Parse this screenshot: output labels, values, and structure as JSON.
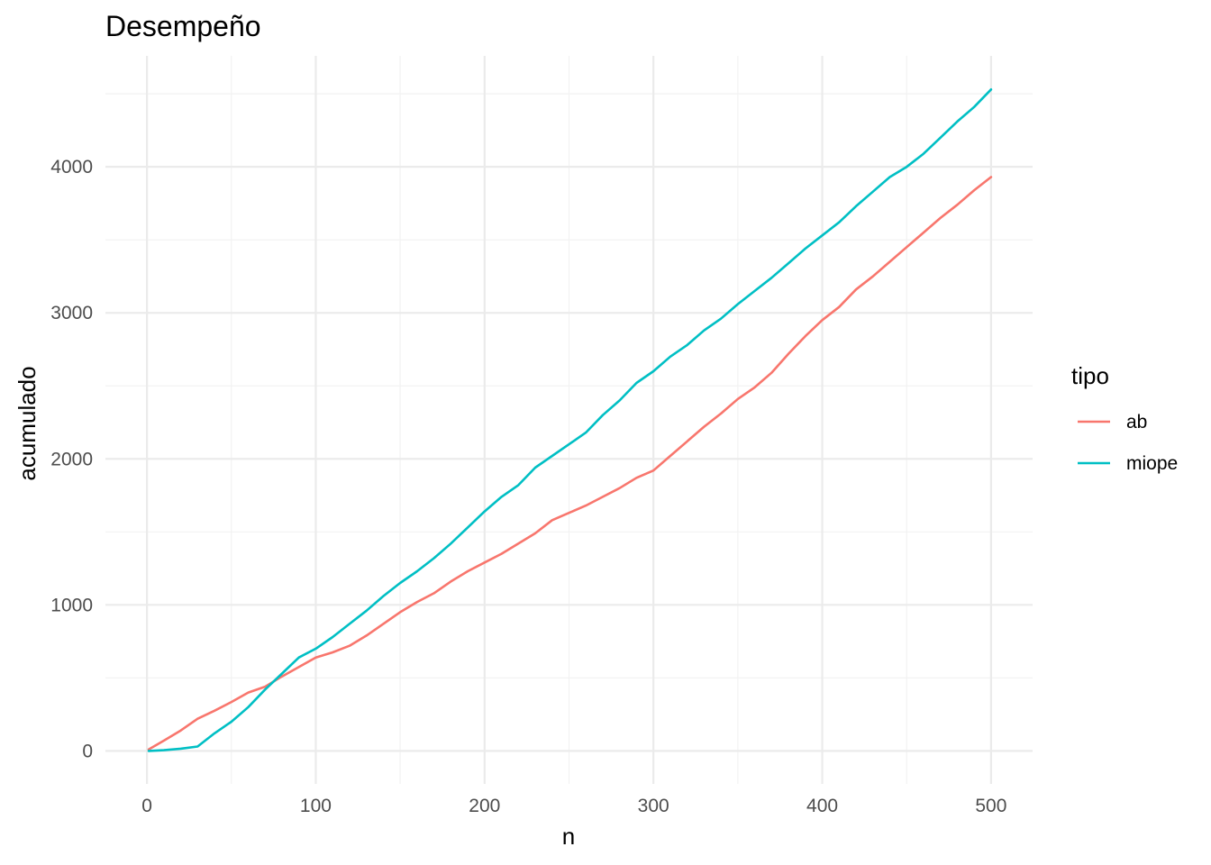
{
  "chart_data": {
    "type": "line",
    "title": "Desempeño",
    "xlabel": "n",
    "ylabel": "acumulado",
    "xlim": [
      -24.6,
      524.6
    ],
    "ylim": [
      -226,
      4760
    ],
    "x_ticks": [
      0,
      100,
      200,
      300,
      400,
      500
    ],
    "y_ticks": [
      0,
      1000,
      2000,
      3000,
      4000
    ],
    "x_tick_labels": [
      "0",
      "100",
      "200",
      "300",
      "400",
      "500"
    ],
    "y_tick_labels": [
      "0",
      "1000",
      "2000",
      "3000",
      "4000"
    ],
    "grid": true,
    "legend": {
      "title": "tipo",
      "position": "right"
    },
    "series": [
      {
        "name": "ab",
        "color": "#F8766D",
        "points": [
          [
            1,
            10
          ],
          [
            10,
            70
          ],
          [
            20,
            140
          ],
          [
            30,
            220
          ],
          [
            40,
            275
          ],
          [
            50,
            335
          ],
          [
            60,
            400
          ],
          [
            70,
            440
          ],
          [
            80,
            510
          ],
          [
            90,
            575
          ],
          [
            100,
            640
          ],
          [
            110,
            675
          ],
          [
            120,
            720
          ],
          [
            130,
            790
          ],
          [
            140,
            870
          ],
          [
            150,
            950
          ],
          [
            160,
            1020
          ],
          [
            170,
            1080
          ],
          [
            180,
            1160
          ],
          [
            190,
            1230
          ],
          [
            200,
            1290
          ],
          [
            210,
            1350
          ],
          [
            220,
            1420
          ],
          [
            230,
            1490
          ],
          [
            240,
            1580
          ],
          [
            250,
            1630
          ],
          [
            260,
            1680
          ],
          [
            270,
            1740
          ],
          [
            280,
            1800
          ],
          [
            290,
            1870
          ],
          [
            300,
            1920
          ],
          [
            310,
            2020
          ],
          [
            320,
            2120
          ],
          [
            330,
            2220
          ],
          [
            340,
            2310
          ],
          [
            350,
            2410
          ],
          [
            360,
            2490
          ],
          [
            370,
            2590
          ],
          [
            380,
            2720
          ],
          [
            390,
            2840
          ],
          [
            400,
            2950
          ],
          [
            410,
            3040
          ],
          [
            420,
            3160
          ],
          [
            430,
            3250
          ],
          [
            440,
            3350
          ],
          [
            450,
            3450
          ],
          [
            460,
            3550
          ],
          [
            470,
            3650
          ],
          [
            480,
            3740
          ],
          [
            490,
            3840
          ],
          [
            500,
            3930
          ]
        ]
      },
      {
        "name": "miope",
        "color": "#00BFC4",
        "points": [
          [
            1,
            0
          ],
          [
            10,
            5
          ],
          [
            20,
            15
          ],
          [
            30,
            30
          ],
          [
            40,
            120
          ],
          [
            50,
            200
          ],
          [
            60,
            300
          ],
          [
            70,
            420
          ],
          [
            80,
            530
          ],
          [
            90,
            640
          ],
          [
            100,
            700
          ],
          [
            110,
            780
          ],
          [
            120,
            870
          ],
          [
            130,
            960
          ],
          [
            140,
            1060
          ],
          [
            150,
            1150
          ],
          [
            160,
            1230
          ],
          [
            170,
            1320
          ],
          [
            180,
            1420
          ],
          [
            190,
            1530
          ],
          [
            200,
            1640
          ],
          [
            210,
            1740
          ],
          [
            220,
            1820
          ],
          [
            230,
            1940
          ],
          [
            240,
            2020
          ],
          [
            250,
            2100
          ],
          [
            260,
            2180
          ],
          [
            270,
            2300
          ],
          [
            280,
            2400
          ],
          [
            290,
            2520
          ],
          [
            300,
            2600
          ],
          [
            310,
            2700
          ],
          [
            320,
            2780
          ],
          [
            330,
            2880
          ],
          [
            340,
            2960
          ],
          [
            350,
            3060
          ],
          [
            360,
            3150
          ],
          [
            370,
            3240
          ],
          [
            380,
            3340
          ],
          [
            390,
            3440
          ],
          [
            400,
            3530
          ],
          [
            410,
            3620
          ],
          [
            420,
            3730
          ],
          [
            430,
            3830
          ],
          [
            440,
            3930
          ],
          [
            450,
            4000
          ],
          [
            460,
            4090
          ],
          [
            470,
            4200
          ],
          [
            480,
            4310
          ],
          [
            490,
            4410
          ],
          [
            500,
            4530
          ]
        ]
      }
    ]
  }
}
